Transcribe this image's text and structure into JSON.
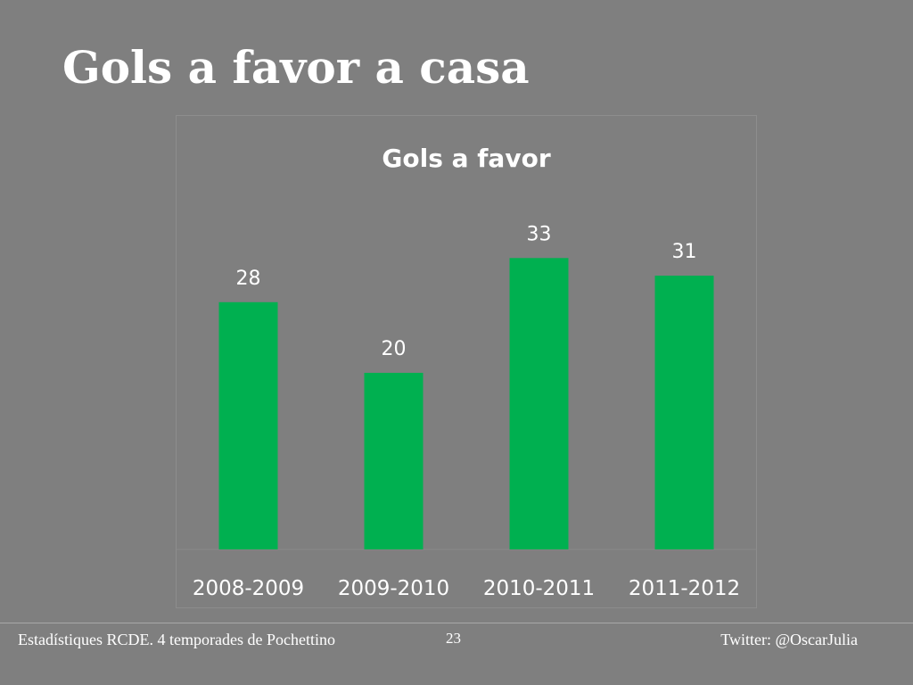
{
  "slide": {
    "title": "Gols a favor a casa"
  },
  "footer": {
    "left_text": "Estadístiques RCDE. 4 temporades de Pochettino",
    "page_number": "23",
    "right_text": "Twitter: @OscarJulia"
  },
  "colors": {
    "background": "#7f7f7f",
    "bar": "#00b050",
    "text": "#ffffff"
  },
  "chart_data": {
    "type": "bar",
    "title": "Gols a favor",
    "categories": [
      "2008-2009",
      "2009-2010",
      "2010-2011",
      "2011-2012"
    ],
    "values": [
      28,
      20,
      33,
      31
    ],
    "data_labels": true,
    "xlabel": "",
    "ylabel": "",
    "ylim": [
      0,
      40
    ],
    "grid": false,
    "legend": "none"
  }
}
